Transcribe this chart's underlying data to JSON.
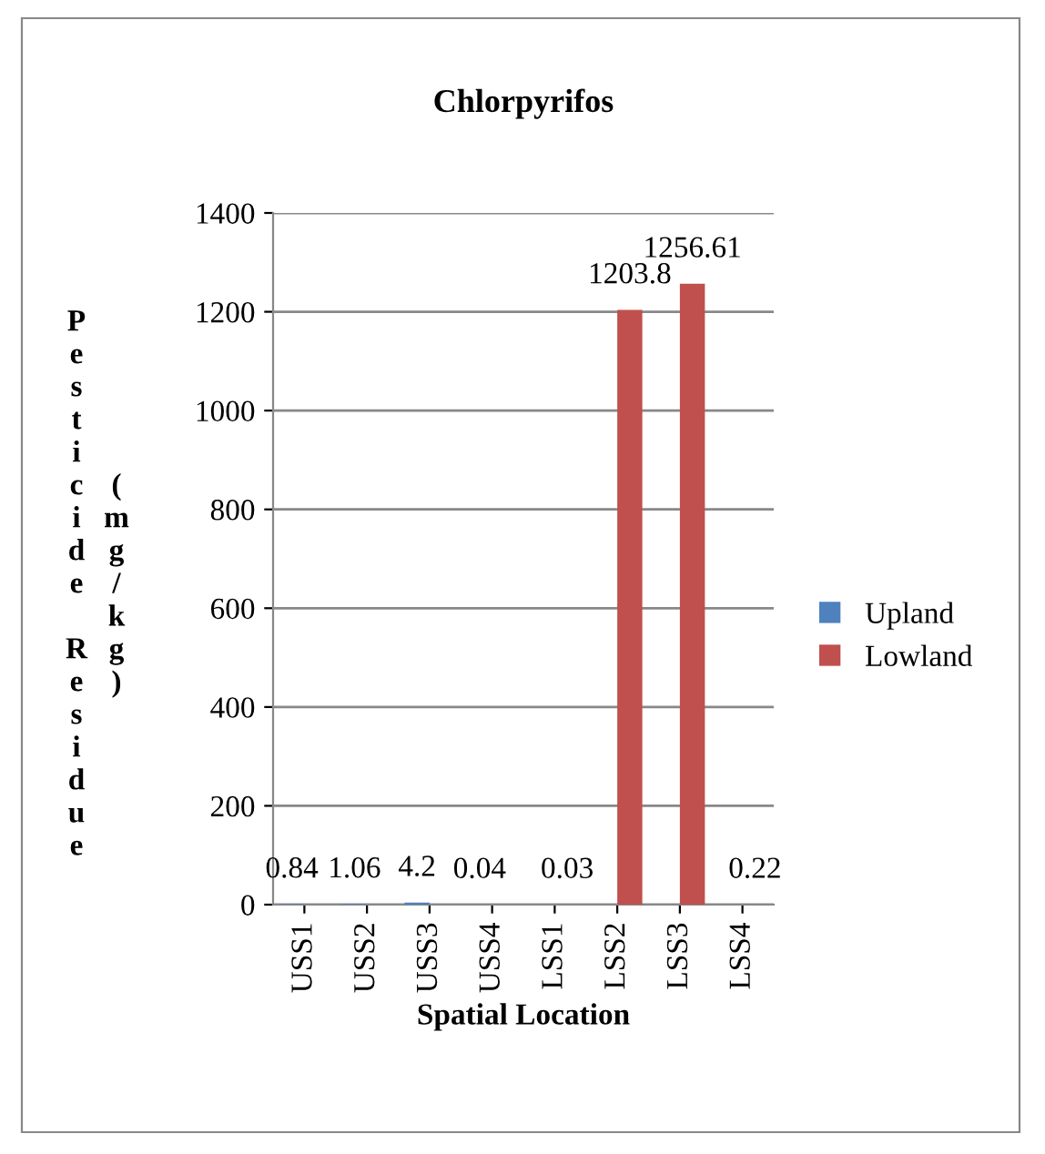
{
  "chart_data": {
    "type": "bar",
    "title": "Chlorpyrifos",
    "xlabel": "Spatial Location",
    "ylabel": "Pesticide Residue (mg/kg)",
    "categories": [
      "USS1",
      "USS2",
      "USS3",
      "USS4",
      "LSS1",
      "LSS2",
      "LSS3",
      "LSS4"
    ],
    "series": [
      {
        "name": "Upland",
        "color": "#4f81bd",
        "values": [
          0.84,
          1.06,
          4.2,
          0.04,
          null,
          null,
          null,
          null
        ]
      },
      {
        "name": "Lowland",
        "color": "#c0504d",
        "values": [
          null,
          null,
          null,
          null,
          0.03,
          1203.8,
          1256.61,
          0.22
        ]
      }
    ],
    "ylim": [
      0,
      1400
    ],
    "yticks": [
      0,
      200,
      400,
      600,
      800,
      1000,
      1200,
      1400
    ],
    "grid": "y",
    "legend": "right",
    "data_labels": true
  }
}
